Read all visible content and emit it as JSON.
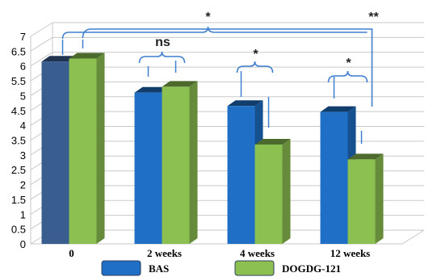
{
  "chart_data": {
    "type": "bar",
    "style": "3d-clustered-column",
    "categories": [
      "0",
      "2 weeks",
      "4 weeks",
      "12 weeks"
    ],
    "series": [
      {
        "name": "BAS",
        "values": [
          6.15,
          5.1,
          4.65,
          4.45
        ],
        "color": "#1f6fc6",
        "first_color": "#3a5d8f"
      },
      {
        "name": "DOGDG-121",
        "values": [
          6.25,
          5.3,
          3.35,
          2.85
        ],
        "color": "#8cc152"
      }
    ],
    "y_ticks": [
      "0",
      "0.5",
      "1",
      "1.5",
      "2",
      "2.5",
      "3",
      "3.5",
      "4",
      "4.5",
      "5",
      "5.5",
      "6",
      "6.5",
      "7"
    ],
    "ylim": [
      0,
      7
    ],
    "grid": true,
    "legend_position": "bottom",
    "annotations": [
      {
        "text": "ns",
        "between": "2 weeks"
      },
      {
        "text": "*",
        "between": "4 weeks"
      },
      {
        "text": "*",
        "between": "12 weeks"
      },
      {
        "text": "*",
        "compare": "0 vs 12 weeks"
      },
      {
        "text": "**",
        "compare": "0 vs 12 weeks"
      }
    ],
    "bracket_color": "#3f7fd0"
  }
}
